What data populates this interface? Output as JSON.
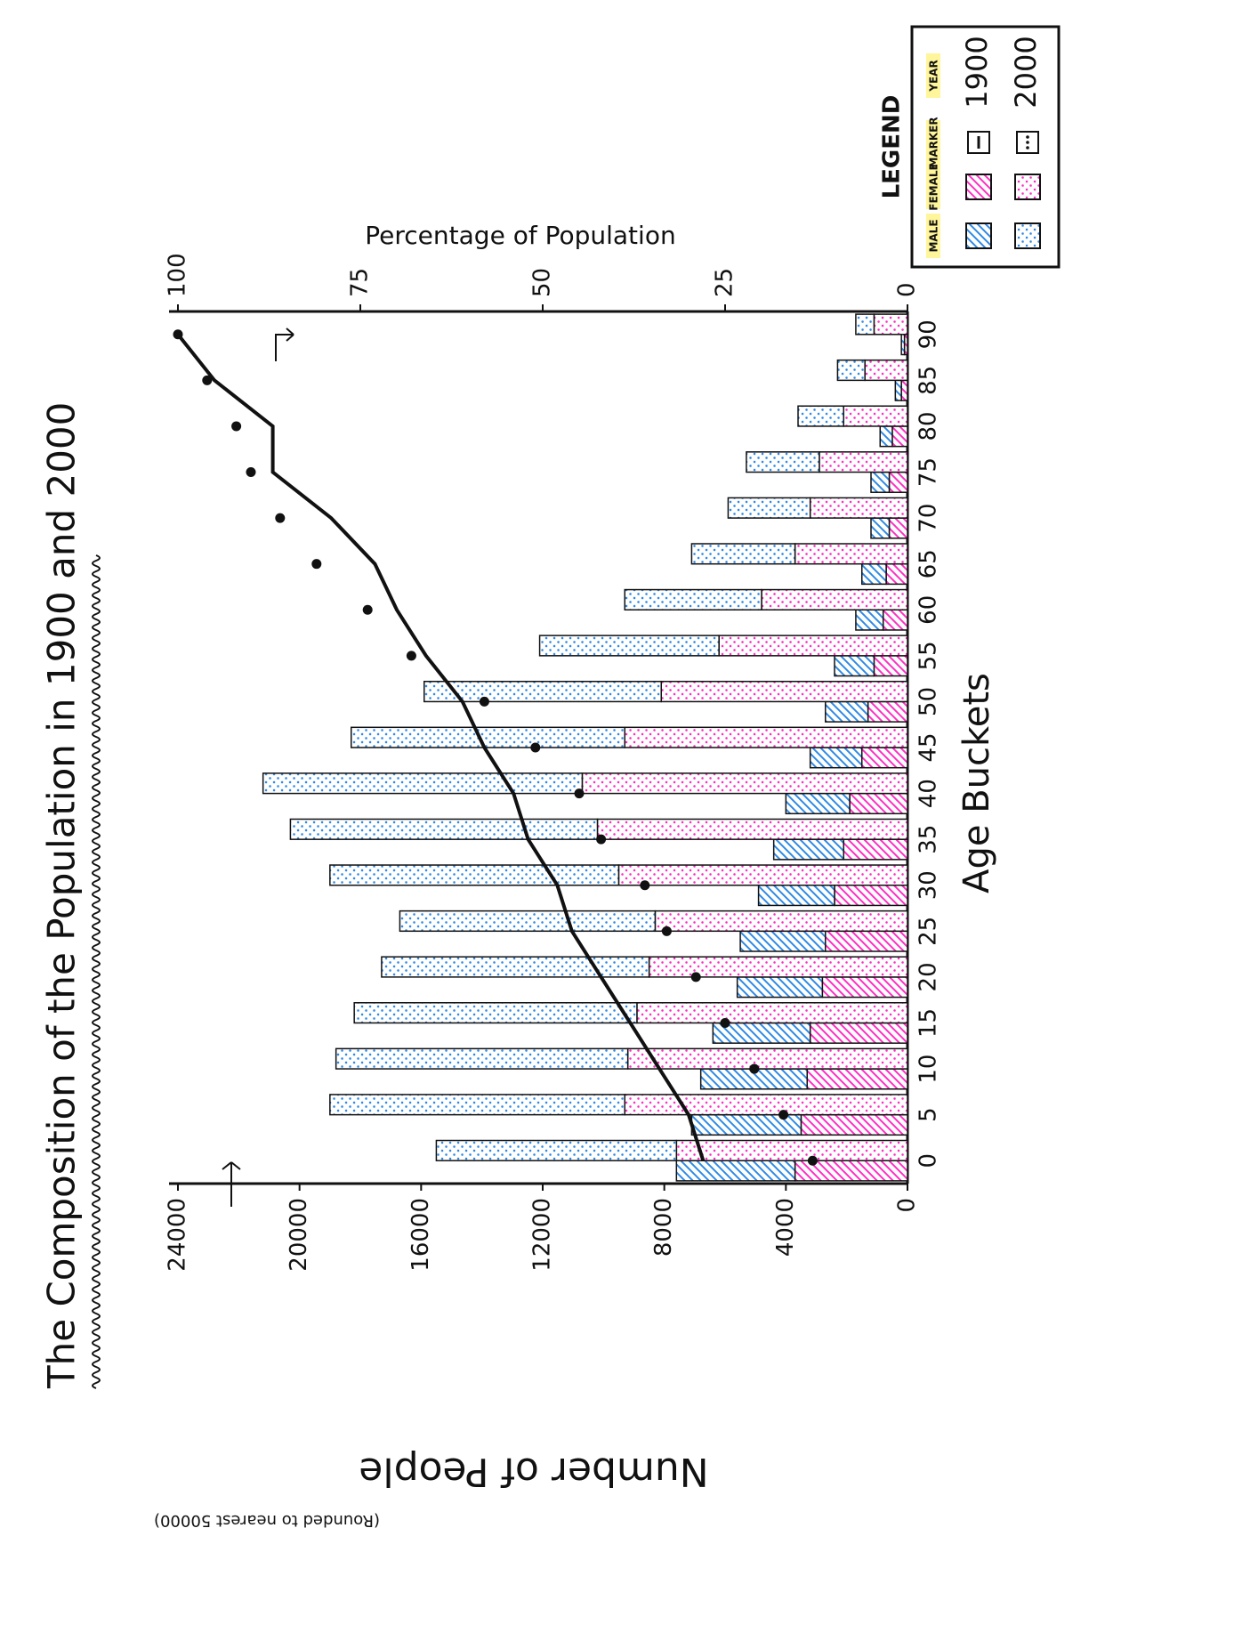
{
  "chart_data": {
    "type": "bar",
    "title": "The Composition of the Population in 1900 and 2000",
    "y_label": "Number of People",
    "y_label_note": "(Rounded to nearest 50000)",
    "y2_label": "Percentage of Population",
    "x_label": "Age Buckets",
    "categories": [
      0,
      5,
      10,
      15,
      20,
      25,
      30,
      35,
      40,
      45,
      50,
      55,
      60,
      65,
      70,
      75,
      80,
      85,
      90
    ],
    "ylim": [
      0,
      24000
    ],
    "yticks": [
      0,
      4000,
      8000,
      12000,
      16000,
      20000,
      24000
    ],
    "y2lim": [
      0,
      100
    ],
    "y2ticks": [
      0,
      25,
      50,
      75,
      100
    ],
    "series": [
      {
        "name": "MALE",
        "color": "#2e8ae6"
      },
      {
        "name": "FEMALE",
        "color": "#ff2ec4"
      }
    ],
    "years": [
      {
        "name": "1900",
        "fill": "hatch",
        "line": "solid",
        "values": [
          [
            3900,
            3600,
            3500,
            3200,
            2800,
            2800,
            2500,
            2300,
            2100,
            1700,
            1400,
            1300,
            900,
            800,
            600,
            600,
            400,
            200,
            100
          ],
          [
            3700,
            3500,
            3300,
            3200,
            2800,
            2700,
            2400,
            2100,
            1900,
            1500,
            1300,
            1100,
            800,
            700,
            600,
            600,
            500,
            200,
            100
          ]
        ],
        "cumulative": [
          28,
          30,
          34,
          38,
          42,
          46,
          48,
          52,
          54,
          58,
          61,
          66,
          70,
          73,
          79,
          87,
          87,
          95,
          100
        ],
        "axis": "y2"
      },
      {
        "name": "2000",
        "fill": "dots",
        "line": "dotted",
        "values": [
          [
            7900,
            9700,
            9600,
            9300,
            8800,
            8400,
            9500,
            10100,
            10500,
            9000,
            7800,
            5900,
            4500,
            3400,
            2700,
            2400,
            1500,
            900,
            600
          ],
          [
            7600,
            9300,
            9200,
            8900,
            8500,
            8300,
            9500,
            10200,
            10700,
            9300,
            8100,
            6200,
            4800,
            3700,
            3200,
            2900,
            2100,
            1400,
            1100
          ]
        ],
        "cumulative": [
          13,
          17,
          21,
          25,
          29,
          33,
          36,
          42,
          45,
          51,
          58,
          68,
          74,
          81,
          86,
          90,
          92,
          96,
          100
        ],
        "axis": "y2"
      }
    ],
    "legend": {
      "title": "LEGEND",
      "marker_header": "MARKER",
      "year_header": "YEAR"
    }
  }
}
